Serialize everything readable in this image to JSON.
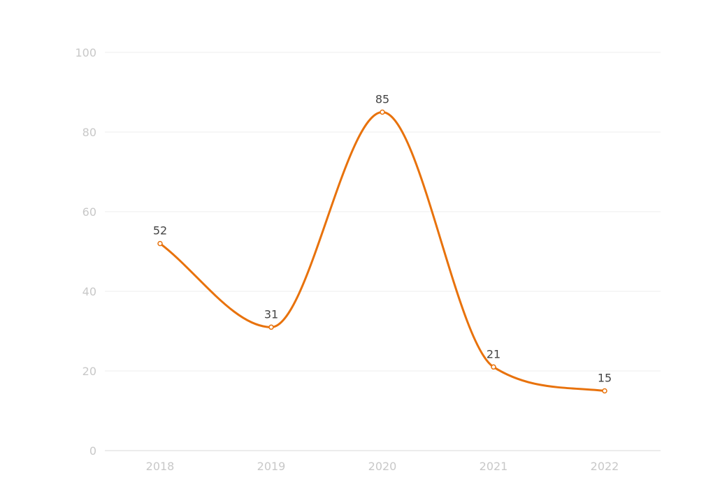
{
  "chart_data": {
    "type": "line",
    "title": "",
    "xlabel": "",
    "ylabel": "",
    "categories": [
      "2018",
      "2019",
      "2020",
      "2021",
      "2022"
    ],
    "series": [
      {
        "values": [
          52,
          31,
          85,
          21,
          15
        ]
      }
    ],
    "ylim": [
      0,
      100
    ],
    "yticks": [
      "0",
      "20",
      "40",
      "60",
      "80",
      "100"
    ],
    "grid": true,
    "smooth": true,
    "data_labels": true,
    "colors": {
      "line": "#E8720C",
      "grid": "#eeeeee",
      "axis": "#d8d8d8",
      "tick_text": "#c8c8c8",
      "label_text": "#444444"
    }
  }
}
